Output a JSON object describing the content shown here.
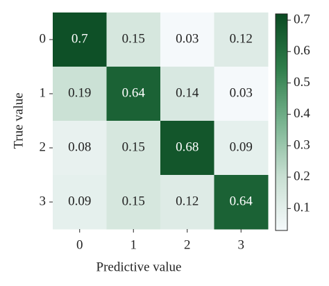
{
  "chart_data": {
    "type": "heatmap",
    "x_label": "Predictive value",
    "y_label": "True value",
    "x_categories": [
      "0",
      "1",
      "2",
      "3"
    ],
    "y_categories": [
      "0",
      "1",
      "2",
      "3"
    ],
    "values": [
      [
        0.7,
        0.15,
        0.03,
        0.12
      ],
      [
        0.19,
        0.64,
        0.14,
        0.03
      ],
      [
        0.08,
        0.15,
        0.68,
        0.09
      ],
      [
        0.09,
        0.15,
        0.12,
        0.64
      ]
    ],
    "colormap": [
      "#f5f9fb",
      "#c8dfd2",
      "#78b38f",
      "#2f7d4a",
      "#0a4a22"
    ],
    "clim": [
      0.03,
      0.72
    ],
    "cticks": [
      0.1,
      0.2,
      0.3,
      0.4,
      0.5,
      0.6,
      0.7
    ]
  }
}
